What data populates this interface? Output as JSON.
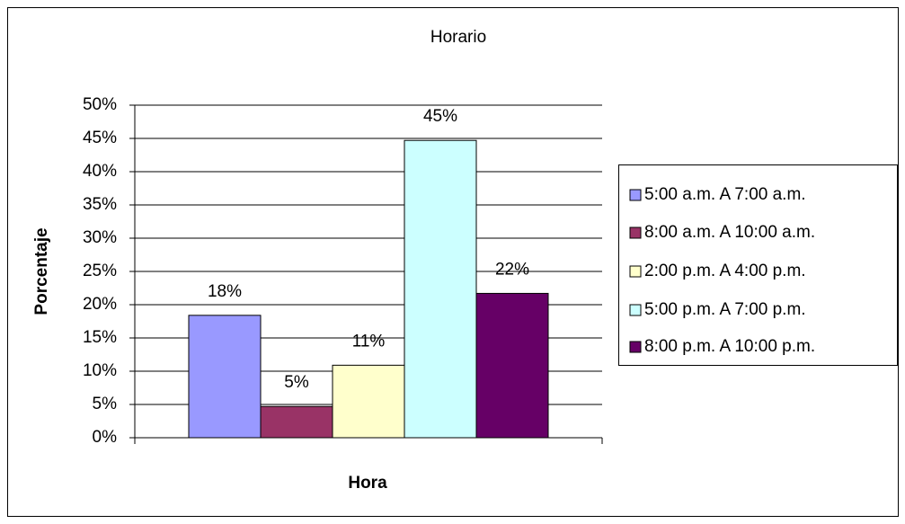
{
  "chart_data": {
    "type": "bar",
    "title": "Horario",
    "x_label": "Hora",
    "y_label": "Porcentaje",
    "categories": [
      null
    ],
    "series": [
      {
        "name": "5:00 a.m. A 7:00 a.m.",
        "color": "#9999ff",
        "values": [
          18.4
        ],
        "value_labels": [
          "18%"
        ]
      },
      {
        "name": "8:00 a.m. A 10:00 a.m.",
        "color": "#993366",
        "values": [
          4.7
        ],
        "value_labels": [
          "5%"
        ]
      },
      {
        "name": "2:00 p.m. A 4:00 p.m.",
        "color": "#ffffcc",
        "values": [
          10.9
        ],
        "value_labels": [
          "11%"
        ]
      },
      {
        "name": "5:00 p.m. A 7:00 p.m.",
        "color": "#ccffff",
        "values": [
          44.7
        ],
        "value_labels": [
          "45%"
        ]
      },
      {
        "name": "8:00 p.m. A 10:00 p.m.",
        "color": "#660066",
        "values": [
          21.7
        ],
        "value_labels": [
          "22%"
        ]
      }
    ],
    "ylim": [
      0,
      50
    ],
    "yticks": [
      {
        "value": 0,
        "label": "0%"
      },
      {
        "value": 5,
        "label": "5%"
      },
      {
        "value": 10,
        "label": "10%"
      },
      {
        "value": 15,
        "label": "15%"
      },
      {
        "value": 20,
        "label": "20%"
      },
      {
        "value": 25,
        "label": "25%"
      },
      {
        "value": 30,
        "label": "30%"
      },
      {
        "value": 35,
        "label": "35%"
      },
      {
        "value": 40,
        "label": "40%"
      },
      {
        "value": 45,
        "label": "45%"
      },
      {
        "value": 50,
        "label": "50%"
      }
    ],
    "grid": true,
    "legend": "right"
  }
}
